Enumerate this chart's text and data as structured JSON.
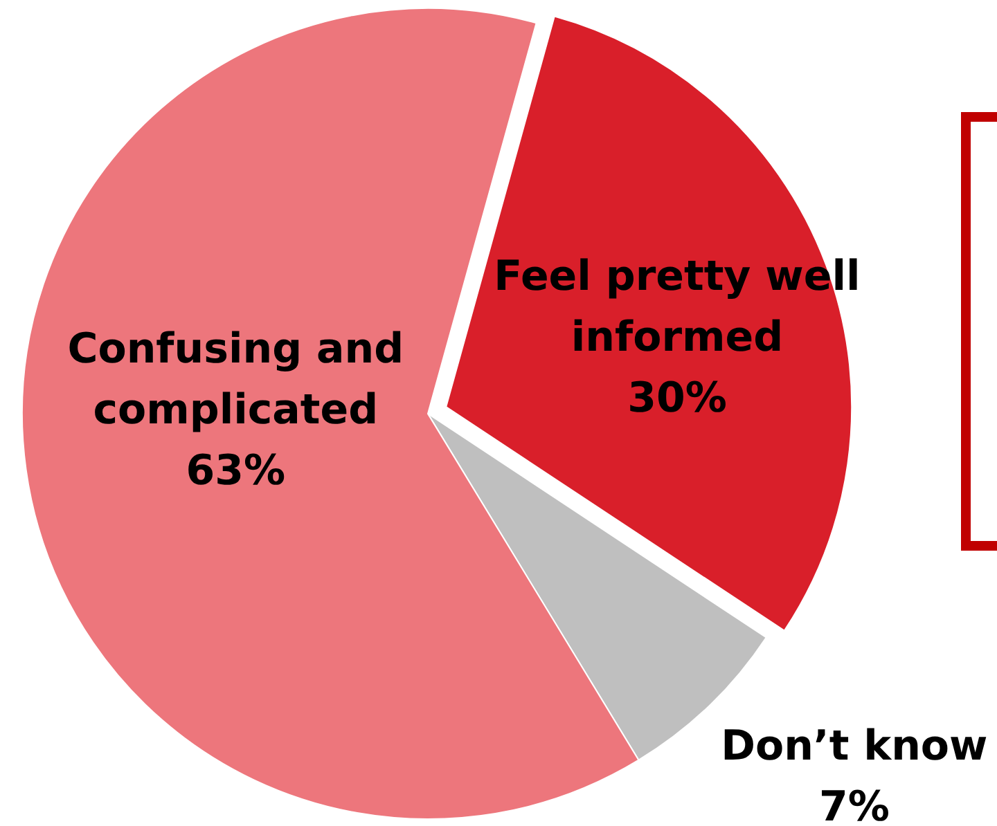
{
  "chart_data": {
    "type": "pie",
    "categories": [
      "Feel pretty well informed",
      "Don’t know",
      "Confusing and complicated"
    ],
    "values": [
      30,
      7,
      63
    ],
    "colors": [
      "#d91f2a",
      "#bfbfbf",
      "#ed767c"
    ],
    "value_labels": [
      "30%",
      "7%",
      "63%"
    ]
  }
}
